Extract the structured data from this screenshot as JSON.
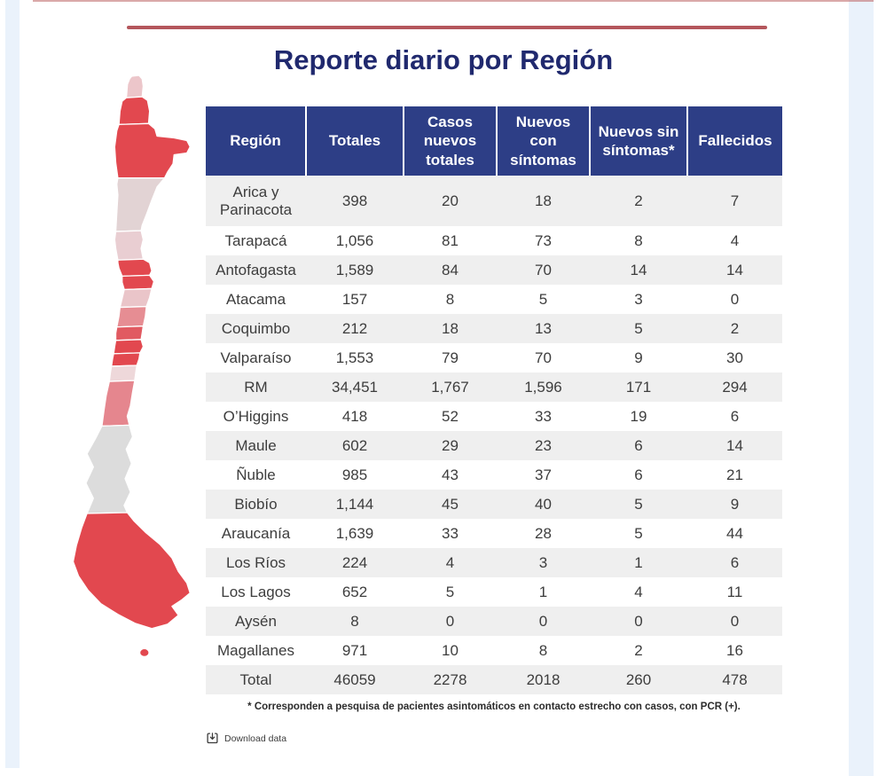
{
  "page": {
    "title": "Reporte diario por Región"
  },
  "accent": {
    "divider_color": "#b4565c",
    "title_color": "#20296e",
    "table_header_bg": "#2d3e86",
    "row_alt_bg": "#efefef",
    "side_strip_color": "#eaf2fb",
    "map_red": "#e2484f"
  },
  "chart_data": {
    "type": "table",
    "title": "Reporte diario por Región",
    "columns": [
      "Región",
      "Totales",
      "Casos nuevos totales",
      "Nuevos con síntomas",
      "Nuevos sin síntomas*",
      "Fallecidos"
    ],
    "rows": [
      [
        "Arica y Parinacota",
        "398",
        "20",
        "18",
        "2",
        "7"
      ],
      [
        "Tarapacá",
        "1,056",
        "81",
        "73",
        "8",
        "4"
      ],
      [
        "Antofagasta",
        "1,589",
        "84",
        "70",
        "14",
        "14"
      ],
      [
        "Atacama",
        "157",
        "8",
        "5",
        "3",
        "0"
      ],
      [
        "Coquimbo",
        "212",
        "18",
        "13",
        "5",
        "2"
      ],
      [
        "Valparaíso",
        "1,553",
        "79",
        "70",
        "9",
        "30"
      ],
      [
        "RM",
        "34,451",
        "1,767",
        "1,596",
        "171",
        "294"
      ],
      [
        "O’Higgins",
        "418",
        "52",
        "33",
        "19",
        "6"
      ],
      [
        "Maule",
        "602",
        "29",
        "23",
        "6",
        "14"
      ],
      [
        "Ñuble",
        "985",
        "43",
        "37",
        "6",
        "21"
      ],
      [
        "Biobío",
        "1,144",
        "45",
        "40",
        "5",
        "9"
      ],
      [
        "Araucanía",
        "1,639",
        "33",
        "28",
        "5",
        "44"
      ],
      [
        "Los Ríos",
        "224",
        "4",
        "3",
        "1",
        "6"
      ],
      [
        "Los Lagos",
        "652",
        "5",
        "1",
        "4",
        "11"
      ],
      [
        "Aysén",
        "8",
        "0",
        "0",
        "0",
        "0"
      ],
      [
        "Magallanes",
        "971",
        "10",
        "8",
        "2",
        "16"
      ],
      [
        "Total",
        "46059",
        "2278",
        "2018",
        "260",
        "478"
      ]
    ]
  },
  "map": {
    "name": "chile-choropleth",
    "regions": [
      {
        "name": "Arica y Parinacota",
        "color": "#ecc6ca"
      },
      {
        "name": "Tarapacá",
        "color": "#e2484f"
      },
      {
        "name": "Antofagasta",
        "color": "#e2484f"
      },
      {
        "name": "Atacama",
        "color": "#e2d3d4"
      },
      {
        "name": "Coquimbo",
        "color": "#e9ced2"
      },
      {
        "name": "Valparaíso",
        "color": "#e2484f"
      },
      {
        "name": "RM",
        "color": "#e2484f"
      },
      {
        "name": "O’Higgins",
        "color": "#eac5c9"
      },
      {
        "name": "Maule",
        "color": "#e68d93"
      },
      {
        "name": "Ñuble",
        "color": "#e15a61"
      },
      {
        "name": "Biobío",
        "color": "#e2484f"
      },
      {
        "name": "Araucanía",
        "color": "#e2484f"
      },
      {
        "name": "Los Ríos",
        "color": "#eed8da"
      },
      {
        "name": "Los Lagos",
        "color": "#e5868e"
      },
      {
        "name": "Aysén",
        "color": "#dcdcdc"
      },
      {
        "name": "Magallanes",
        "color": "#e2484f"
      }
    ]
  },
  "footnote": "* Corresponden a pesquisa de pacientes asintomáticos en contacto estrecho con casos, con PCR (+).",
  "download": {
    "label": "Download data"
  }
}
